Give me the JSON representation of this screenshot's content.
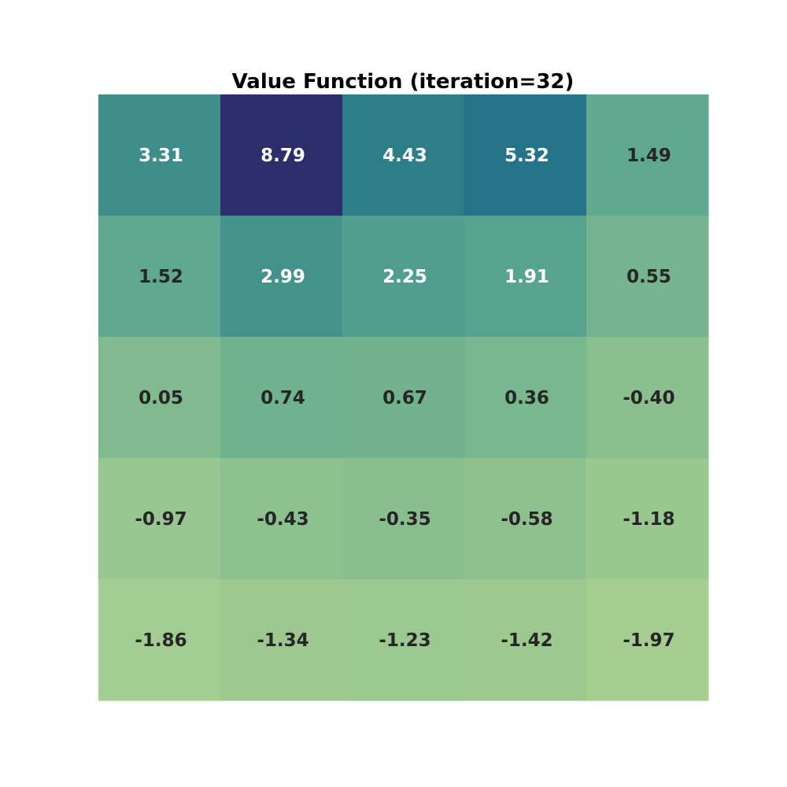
{
  "chart_data": {
    "type": "heatmap",
    "title": "Value Function (iteration=32)",
    "rows": 5,
    "cols": 5,
    "values": [
      [
        3.31,
        8.79,
        4.43,
        5.32,
        1.49
      ],
      [
        1.52,
        2.99,
        2.25,
        1.91,
        0.55
      ],
      [
        0.05,
        0.74,
        0.67,
        0.36,
        -0.4
      ],
      [
        -0.97,
        -0.43,
        -0.35,
        -0.58,
        -1.18
      ],
      [
        -1.86,
        -1.34,
        -1.23,
        -1.42,
        -1.97
      ]
    ],
    "labels": [
      [
        "3.31",
        "8.79",
        "4.43",
        "5.32",
        "1.49"
      ],
      [
        "1.52",
        "2.99",
        "2.25",
        "1.91",
        "0.55"
      ],
      [
        "0.05",
        "0.74",
        "0.67",
        "0.36",
        "-0.40"
      ],
      [
        "-0.97",
        "-0.43",
        "-0.35",
        "-0.58",
        "-1.18"
      ],
      [
        "-1.86",
        "-1.34",
        "-1.23",
        "-1.42",
        "-1.97"
      ]
    ],
    "colormap": "crest",
    "color_low": "#a5cd8f",
    "color_high": "#2c2f6d",
    "label_color_light": "#ffffff",
    "label_color_dark": "#262626",
    "axes_visible": false,
    "grid": false
  }
}
